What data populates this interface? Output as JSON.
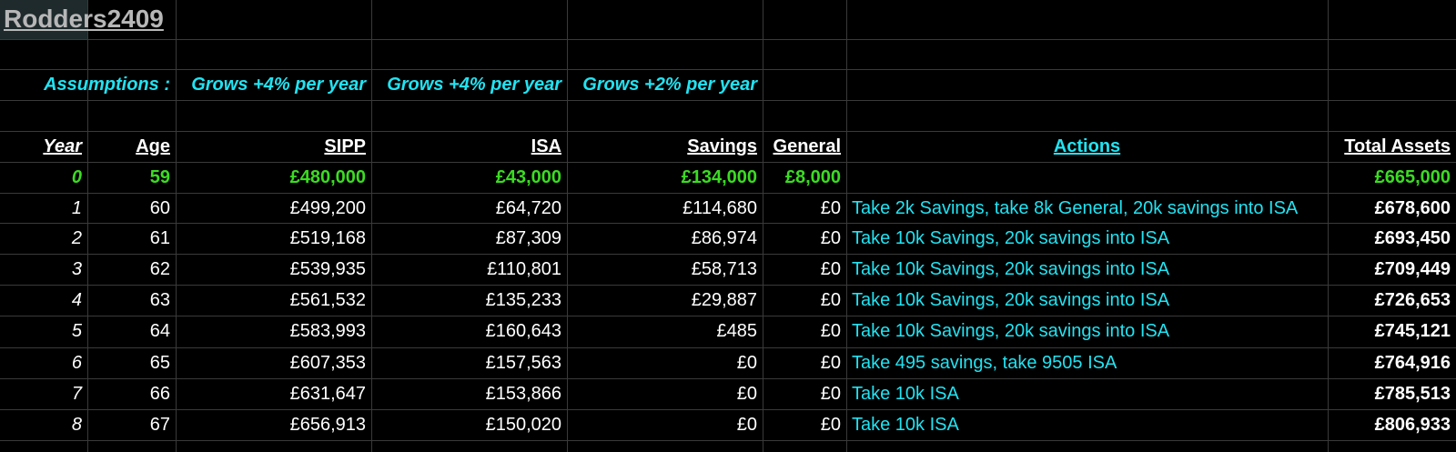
{
  "sheet": {
    "title": "Rodders2409",
    "assumptions": {
      "label": "Assumptions :",
      "sipp": "Grows +4% per year",
      "isa": "Grows +4% per year",
      "savings": "Grows +2% per year"
    },
    "headers": {
      "year": "Year",
      "age": "Age",
      "sipp": "SIPP",
      "isa": "ISA",
      "savings": "Savings",
      "general": "General",
      "actions": "Actions",
      "total": "Total Assets"
    },
    "rows": [
      {
        "year": "0",
        "age": "59",
        "sipp": "£480,000",
        "isa": "£43,000",
        "savings": "£134,000",
        "general": "£8,000",
        "action": "",
        "total": "£665,000"
      },
      {
        "year": "1",
        "age": "60",
        "sipp": "£499,200",
        "isa": "£64,720",
        "savings": "£114,680",
        "general": "£0",
        "action": "Take 2k Savings, take 8k General, 20k savings into ISA",
        "total": "£678,600"
      },
      {
        "year": "2",
        "age": "61",
        "sipp": "£519,168",
        "isa": "£87,309",
        "savings": "£86,974",
        "general": "£0",
        "action": "Take 10k Savings, 20k savings into ISA",
        "total": "£693,450"
      },
      {
        "year": "3",
        "age": "62",
        "sipp": "£539,935",
        "isa": "£110,801",
        "savings": "£58,713",
        "general": "£0",
        "action": "Take 10k Savings, 20k savings into ISA",
        "total": "£709,449"
      },
      {
        "year": "4",
        "age": "63",
        "sipp": "£561,532",
        "isa": "£135,233",
        "savings": "£29,887",
        "general": "£0",
        "action": "Take 10k Savings, 20k savings into ISA",
        "total": "£726,653"
      },
      {
        "year": "5",
        "age": "64",
        "sipp": "£583,993",
        "isa": "£160,643",
        "savings": "£485",
        "general": "£0",
        "action": "Take 10k Savings, 20k savings into ISA",
        "total": "£745,121"
      },
      {
        "year": "6",
        "age": "65",
        "sipp": "£607,353",
        "isa": "£157,563",
        "savings": "£0",
        "general": "£0",
        "action": "Take 495 savings, take 9505 ISA",
        "total": "£764,916"
      },
      {
        "year": "7",
        "age": "66",
        "sipp": "£631,647",
        "isa": "£153,866",
        "savings": "£0",
        "general": "£0",
        "action": "Take 10k ISA",
        "total": "£785,513"
      },
      {
        "year": "8",
        "age": "67",
        "sipp": "£656,913",
        "isa": "£150,020",
        "savings": "£0",
        "general": "£0",
        "action": "Take 10k ISA",
        "total": "£806,933"
      }
    ]
  },
  "colors": {
    "background": "#000000",
    "accent_cyan": "#21e3f2",
    "accent_green": "#3bdc22",
    "title_grey": "#b7b7b7",
    "gridline": "#3a3a3a"
  }
}
